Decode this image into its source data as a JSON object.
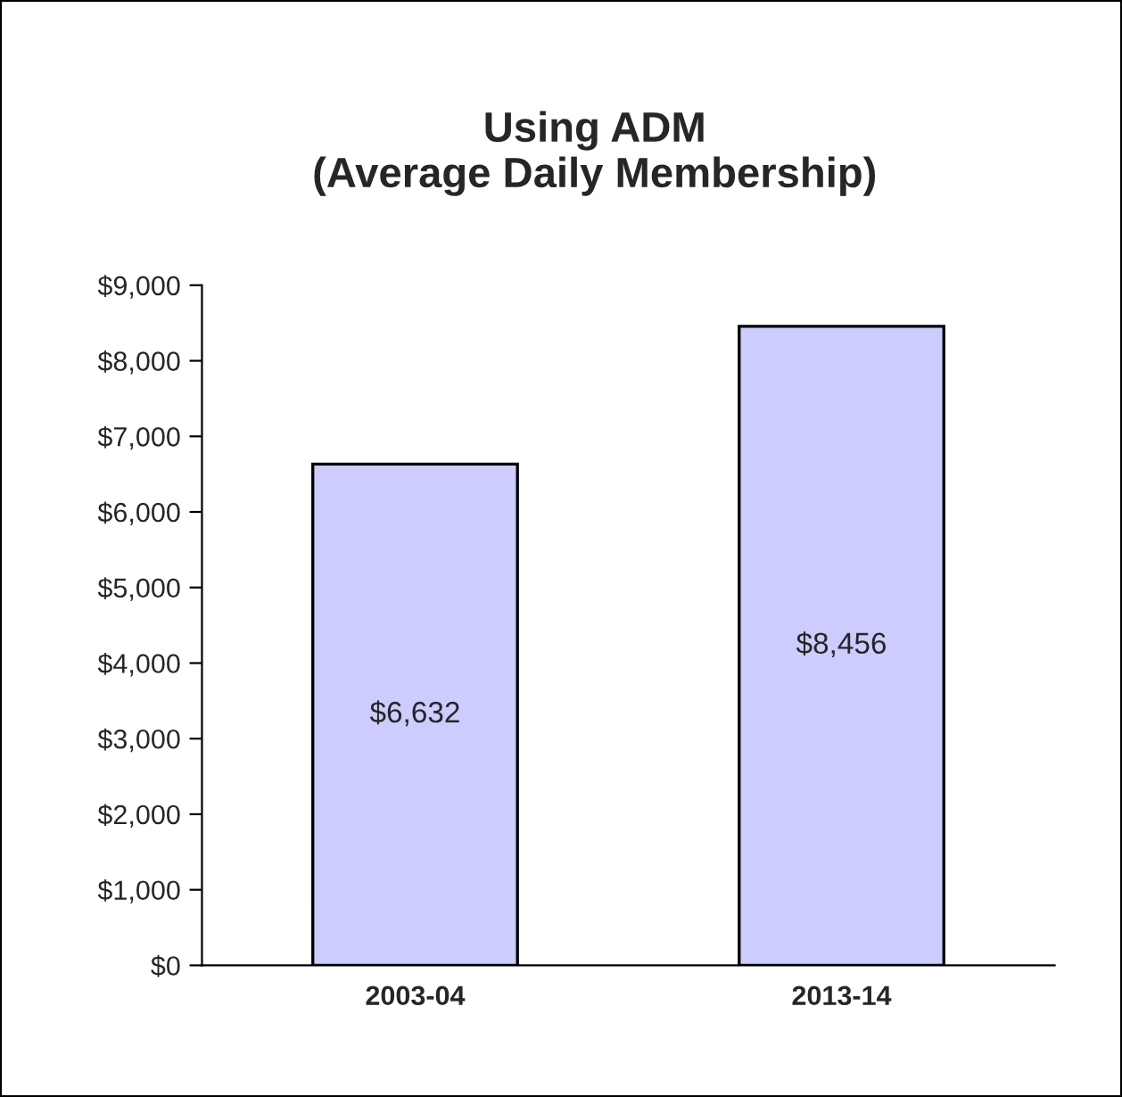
{
  "chart_data": {
    "type": "bar",
    "title": "Using ADM\n(Average Daily Membership)",
    "categories": [
      "2003-04",
      "2013-14"
    ],
    "values": [
      6632,
      8456
    ],
    "color": "#ccccff",
    "value_labels": [
      "$6,632",
      "$8,456"
    ],
    "ylim": [
      0,
      9000
    ],
    "yticks": [
      {
        "value": 0,
        "label": "$0"
      },
      {
        "value": 1000,
        "label": "$1,000"
      },
      {
        "value": 2000,
        "label": "$2,000"
      },
      {
        "value": 3000,
        "label": "$3,000"
      },
      {
        "value": 4000,
        "label": "$4,000"
      },
      {
        "value": 5000,
        "label": "$5,000"
      },
      {
        "value": 6000,
        "label": "$6,000"
      },
      {
        "value": 7000,
        "label": "$7,000"
      },
      {
        "value": 8000,
        "label": "$8,000"
      },
      {
        "value": 9000,
        "label": "$9,000"
      }
    ],
    "grid": false,
    "legend": false
  }
}
